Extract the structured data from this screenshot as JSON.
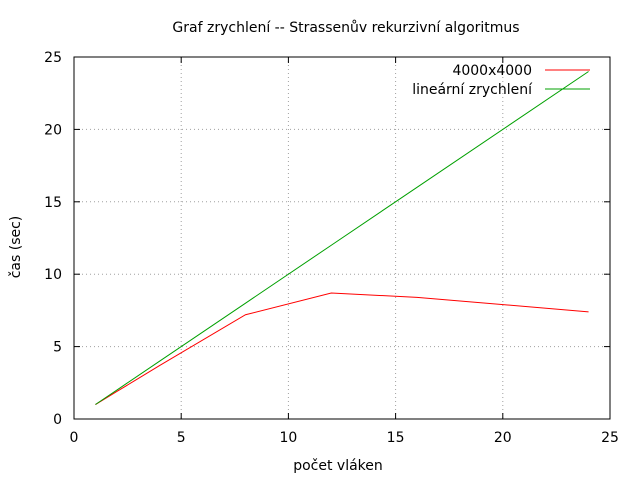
{
  "chart_data": {
    "type": "line",
    "title": "Graf zrychlení -- Strassenův rekurzivní algoritmus",
    "xlabel": "počet vláken",
    "ylabel": "čas (sec)",
    "xlim": [
      0,
      25
    ],
    "ylim": [
      0,
      25
    ],
    "x_ticks": [
      0,
      5,
      10,
      15,
      20,
      25
    ],
    "y_ticks": [
      0,
      5,
      10,
      15,
      20,
      25
    ],
    "grid": true,
    "legend_position": "top-right",
    "series": [
      {
        "name": "4000x4000",
        "color": "#ff0000",
        "x": [
          1,
          2,
          4,
          8,
          12,
          16,
          24
        ],
        "y": [
          1.0,
          1.9,
          3.7,
          7.2,
          8.7,
          8.4,
          7.4
        ]
      },
      {
        "name": "lineární zrychlení",
        "color": "#00a000",
        "x": [
          1,
          2,
          4,
          8,
          12,
          16,
          24
        ],
        "y": [
          1,
          2,
          4,
          8,
          12,
          16,
          24
        ]
      }
    ]
  }
}
